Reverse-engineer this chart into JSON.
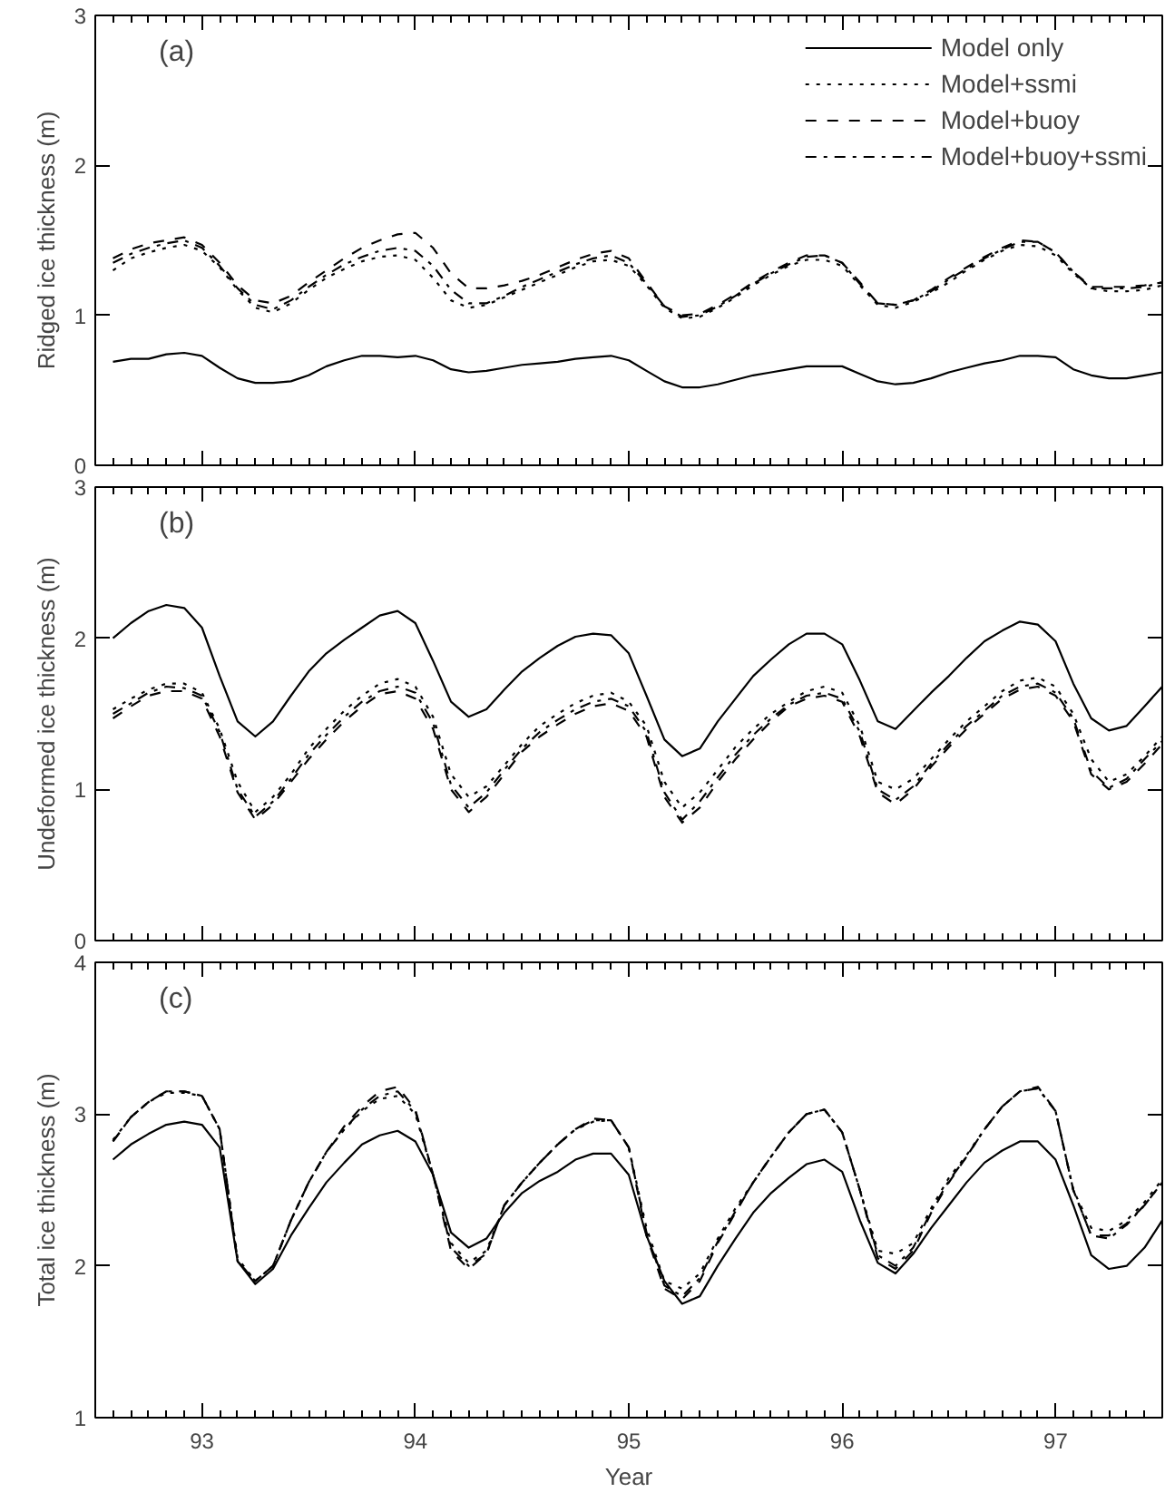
{
  "chart_data": [
    {
      "type": "line",
      "ylabel": "Ridged ice thickness (m)",
      "annotations": [
        "(a)"
      ],
      "legend": "top right",
      "tick_labels": "y",
      "xlim": [
        92.5,
        97.5
      ],
      "xticks": [
        93,
        94,
        95,
        96,
        97
      ],
      "ylim": [
        0,
        3
      ],
      "yticks": [
        0,
        1,
        2,
        3
      ],
      "grid": false,
      "x": [
        92.583,
        92.667,
        92.75,
        92.833,
        92.917,
        93.0,
        93.083,
        93.167,
        93.25,
        93.333,
        93.417,
        93.5,
        93.583,
        93.667,
        93.75,
        93.833,
        93.917,
        94.0,
        94.083,
        94.167,
        94.25,
        94.333,
        94.417,
        94.5,
        94.583,
        94.667,
        94.75,
        94.833,
        94.917,
        95.0,
        95.083,
        95.167,
        95.25,
        95.333,
        95.417,
        95.5,
        95.583,
        95.667,
        95.75,
        95.833,
        95.917,
        96.0,
        96.083,
        96.167,
        96.25,
        96.333,
        96.417,
        96.5,
        96.583,
        96.667,
        96.75,
        96.833,
        96.917,
        97.0,
        97.083,
        97.167,
        97.25,
        97.333,
        97.417,
        97.5
      ],
      "series": [
        {
          "name": "Model only",
          "color": "#000000",
          "line_style": "solid",
          "values": [
            0.69,
            0.71,
            0.71,
            0.74,
            0.75,
            0.73,
            0.65,
            0.58,
            0.55,
            0.55,
            0.56,
            0.6,
            0.66,
            0.7,
            0.73,
            0.73,
            0.72,
            0.73,
            0.7,
            0.64,
            0.62,
            0.63,
            0.65,
            0.67,
            0.68,
            0.69,
            0.71,
            0.72,
            0.73,
            0.7,
            0.63,
            0.56,
            0.52,
            0.52,
            0.54,
            0.57,
            0.6,
            0.62,
            0.64,
            0.66,
            0.66,
            0.66,
            0.61,
            0.56,
            0.54,
            0.55,
            0.58,
            0.62,
            0.65,
            0.68,
            0.7,
            0.73,
            0.73,
            0.72,
            0.64,
            0.6,
            0.58,
            0.58,
            0.6,
            0.62
          ]
        },
        {
          "name": "Model+ssmi",
          "color": "#000000",
          "line_style": "dotted",
          "values": [
            1.3,
            1.38,
            1.42,
            1.45,
            1.47,
            1.43,
            1.32,
            1.17,
            1.05,
            1.02,
            1.08,
            1.17,
            1.25,
            1.31,
            1.36,
            1.39,
            1.4,
            1.37,
            1.25,
            1.1,
            1.05,
            1.07,
            1.12,
            1.17,
            1.22,
            1.27,
            1.32,
            1.36,
            1.37,
            1.33,
            1.2,
            1.05,
            0.98,
            0.99,
            1.05,
            1.12,
            1.2,
            1.27,
            1.33,
            1.37,
            1.37,
            1.33,
            1.2,
            1.07,
            1.05,
            1.09,
            1.15,
            1.22,
            1.3,
            1.37,
            1.43,
            1.47,
            1.46,
            1.4,
            1.28,
            1.18,
            1.16,
            1.16,
            1.17,
            1.2
          ]
        },
        {
          "name": "Model+buoy",
          "color": "#000000",
          "line_style": "dashed",
          "values": [
            1.38,
            1.44,
            1.48,
            1.5,
            1.52,
            1.47,
            1.35,
            1.2,
            1.1,
            1.08,
            1.13,
            1.22,
            1.3,
            1.38,
            1.45,
            1.5,
            1.54,
            1.55,
            1.45,
            1.28,
            1.18,
            1.18,
            1.2,
            1.23,
            1.27,
            1.32,
            1.37,
            1.41,
            1.43,
            1.38,
            1.22,
            1.06,
            1.0,
            1.01,
            1.07,
            1.14,
            1.22,
            1.29,
            1.35,
            1.4,
            1.4,
            1.35,
            1.22,
            1.08,
            1.07,
            1.1,
            1.17,
            1.25,
            1.32,
            1.39,
            1.45,
            1.5,
            1.49,
            1.42,
            1.29,
            1.19,
            1.19,
            1.19,
            1.2,
            1.22
          ]
        },
        {
          "name": "Model+buoy+ssmi",
          "color": "#000000",
          "line_style": "dashdot",
          "values": [
            1.35,
            1.41,
            1.45,
            1.48,
            1.5,
            1.45,
            1.33,
            1.18,
            1.07,
            1.04,
            1.1,
            1.19,
            1.27,
            1.34,
            1.39,
            1.43,
            1.45,
            1.43,
            1.33,
            1.17,
            1.08,
            1.08,
            1.13,
            1.19,
            1.24,
            1.29,
            1.34,
            1.38,
            1.4,
            1.35,
            1.21,
            1.06,
            0.99,
            1.0,
            1.06,
            1.13,
            1.21,
            1.28,
            1.34,
            1.39,
            1.4,
            1.35,
            1.21,
            1.08,
            1.07,
            1.1,
            1.16,
            1.24,
            1.31,
            1.38,
            1.44,
            1.49,
            1.49,
            1.42,
            1.29,
            1.18,
            1.18,
            1.18,
            1.19,
            1.22
          ]
        }
      ]
    },
    {
      "type": "line",
      "ylabel": "Undeformed ice thickness (m)",
      "annotations": [
        "(b)"
      ],
      "tick_labels": "y",
      "xlim": [
        92.5,
        97.5
      ],
      "xticks": [
        93,
        94,
        95,
        96,
        97
      ],
      "ylim": [
        0,
        3
      ],
      "yticks": [
        0,
        1,
        2,
        3
      ],
      "grid": false,
      "x": [
        92.583,
        92.667,
        92.75,
        92.833,
        92.917,
        93.0,
        93.083,
        93.167,
        93.25,
        93.333,
        93.417,
        93.5,
        93.583,
        93.667,
        93.75,
        93.833,
        93.917,
        94.0,
        94.083,
        94.167,
        94.25,
        94.333,
        94.417,
        94.5,
        94.583,
        94.667,
        94.75,
        94.833,
        94.917,
        95.0,
        95.083,
        95.167,
        95.25,
        95.333,
        95.417,
        95.5,
        95.583,
        95.667,
        95.75,
        95.833,
        95.917,
        96.0,
        96.083,
        96.167,
        96.25,
        96.333,
        96.417,
        96.5,
        96.583,
        96.667,
        96.75,
        96.833,
        96.917,
        97.0,
        97.083,
        97.167,
        97.25,
        97.333,
        97.417,
        97.5
      ],
      "series": [
        {
          "color": "#000000",
          "line_style": "solid",
          "values": [
            2.0,
            2.1,
            2.18,
            2.22,
            2.2,
            2.07,
            1.75,
            1.45,
            1.35,
            1.45,
            1.62,
            1.78,
            1.9,
            1.99,
            2.07,
            2.15,
            2.18,
            2.1,
            1.85,
            1.58,
            1.48,
            1.53,
            1.66,
            1.78,
            1.87,
            1.95,
            2.01,
            2.03,
            2.02,
            1.9,
            1.62,
            1.33,
            1.22,
            1.27,
            1.45,
            1.6,
            1.75,
            1.86,
            1.96,
            2.03,
            2.03,
            1.96,
            1.72,
            1.45,
            1.4,
            1.52,
            1.64,
            1.75,
            1.87,
            1.98,
            2.05,
            2.11,
            2.09,
            1.98,
            1.7,
            1.47,
            1.39,
            1.42,
            1.55,
            1.68
          ]
        },
        {
          "color": "#000000",
          "line_style": "dotted",
          "values": [
            1.53,
            1.6,
            1.66,
            1.7,
            1.7,
            1.64,
            1.4,
            1.05,
            0.85,
            0.95,
            1.1,
            1.27,
            1.4,
            1.52,
            1.62,
            1.7,
            1.73,
            1.68,
            1.48,
            1.1,
            0.95,
            1.02,
            1.16,
            1.3,
            1.42,
            1.5,
            1.57,
            1.62,
            1.64,
            1.58,
            1.42,
            1.05,
            0.88,
            0.98,
            1.13,
            1.28,
            1.4,
            1.5,
            1.58,
            1.65,
            1.68,
            1.64,
            1.42,
            1.05,
            1.0,
            1.07,
            1.2,
            1.33,
            1.45,
            1.55,
            1.65,
            1.72,
            1.74,
            1.68,
            1.5,
            1.2,
            1.05,
            1.1,
            1.22,
            1.35
          ]
        },
        {
          "color": "#000000",
          "line_style": "dashed",
          "values": [
            1.47,
            1.55,
            1.62,
            1.65,
            1.65,
            1.6,
            1.35,
            0.98,
            0.8,
            0.9,
            1.05,
            1.2,
            1.33,
            1.45,
            1.55,
            1.63,
            1.65,
            1.6,
            1.4,
            1.0,
            0.85,
            0.95,
            1.1,
            1.25,
            1.35,
            1.43,
            1.5,
            1.55,
            1.57,
            1.52,
            1.35,
            0.95,
            0.78,
            0.88,
            1.05,
            1.2,
            1.33,
            1.45,
            1.55,
            1.6,
            1.62,
            1.58,
            1.35,
            0.98,
            0.9,
            1.0,
            1.15,
            1.28,
            1.4,
            1.5,
            1.6,
            1.66,
            1.68,
            1.62,
            1.45,
            1.1,
            1.0,
            1.05,
            1.17,
            1.3
          ]
        },
        {
          "color": "#000000",
          "line_style": "dashdot",
          "values": [
            1.5,
            1.57,
            1.64,
            1.68,
            1.67,
            1.62,
            1.38,
            1.0,
            0.82,
            0.92,
            1.07,
            1.23,
            1.36,
            1.48,
            1.58,
            1.65,
            1.68,
            1.64,
            1.44,
            1.03,
            0.88,
            0.98,
            1.13,
            1.27,
            1.38,
            1.46,
            1.53,
            1.58,
            1.6,
            1.55,
            1.38,
            0.98,
            0.8,
            0.92,
            1.08,
            1.23,
            1.36,
            1.47,
            1.56,
            1.62,
            1.64,
            1.6,
            1.38,
            1.0,
            0.93,
            1.02,
            1.17,
            1.3,
            1.42,
            1.52,
            1.62,
            1.68,
            1.7,
            1.64,
            1.47,
            1.12,
            1.01,
            1.07,
            1.2,
            1.32
          ]
        }
      ]
    },
    {
      "type": "line",
      "ylabel": "Total ice thickness (m)",
      "xlabel": "Year",
      "annotations": [
        "(c)"
      ],
      "xlim": [
        92.5,
        97.5
      ],
      "xticks": [
        93,
        94,
        95,
        96,
        97
      ],
      "ylim": [
        1,
        4
      ],
      "yticks": [
        1,
        2,
        3,
        4
      ],
      "grid": false,
      "x": [
        92.583,
        92.667,
        92.75,
        92.833,
        92.917,
        93.0,
        93.083,
        93.167,
        93.25,
        93.333,
        93.417,
        93.5,
        93.583,
        93.667,
        93.75,
        93.833,
        93.917,
        94.0,
        94.083,
        94.167,
        94.25,
        94.333,
        94.417,
        94.5,
        94.583,
        94.667,
        94.75,
        94.833,
        94.917,
        95.0,
        95.083,
        95.167,
        95.25,
        95.333,
        95.417,
        95.5,
        95.583,
        95.667,
        95.75,
        95.833,
        95.917,
        96.0,
        96.083,
        96.167,
        96.25,
        96.333,
        96.417,
        96.5,
        96.583,
        96.667,
        96.75,
        96.833,
        96.917,
        97.0,
        97.083,
        97.167,
        97.25,
        97.333,
        97.417,
        97.5
      ],
      "series": [
        {
          "color": "#000000",
          "line_style": "solid",
          "values": [
            2.7,
            2.8,
            2.87,
            2.93,
            2.95,
            2.93,
            2.78,
            2.03,
            1.88,
            1.98,
            2.2,
            2.38,
            2.55,
            2.68,
            2.8,
            2.86,
            2.89,
            2.82,
            2.6,
            2.22,
            2.12,
            2.18,
            2.35,
            2.48,
            2.56,
            2.62,
            2.7,
            2.74,
            2.74,
            2.6,
            2.2,
            1.9,
            1.75,
            1.8,
            2.0,
            2.18,
            2.35,
            2.48,
            2.58,
            2.67,
            2.7,
            2.62,
            2.3,
            2.02,
            1.95,
            2.08,
            2.25,
            2.4,
            2.55,
            2.68,
            2.76,
            2.82,
            2.82,
            2.7,
            2.4,
            2.07,
            1.98,
            2.0,
            2.12,
            2.3
          ]
        },
        {
          "color": "#000000",
          "line_style": "dotted",
          "values": [
            2.83,
            2.98,
            3.08,
            3.14,
            3.14,
            3.12,
            2.9,
            2.05,
            1.9,
            2.0,
            2.3,
            2.55,
            2.75,
            2.9,
            3.02,
            3.1,
            3.12,
            3.0,
            2.6,
            2.15,
            2.02,
            2.1,
            2.4,
            2.55,
            2.68,
            2.8,
            2.9,
            2.95,
            2.96,
            2.78,
            2.25,
            1.9,
            1.85,
            1.95,
            2.18,
            2.38,
            2.55,
            2.72,
            2.88,
            3.0,
            3.03,
            2.88,
            2.5,
            2.1,
            2.08,
            2.15,
            2.38,
            2.58,
            2.73,
            2.9,
            3.05,
            3.15,
            3.17,
            3.02,
            2.5,
            2.25,
            2.23,
            2.3,
            2.42,
            2.57
          ]
        },
        {
          "color": "#000000",
          "line_style": "dashed",
          "values": [
            2.82,
            2.98,
            3.08,
            3.15,
            3.15,
            3.12,
            2.9,
            2.03,
            1.9,
            2.0,
            2.3,
            2.55,
            2.75,
            2.92,
            3.05,
            3.15,
            3.18,
            3.03,
            2.6,
            2.1,
            1.98,
            2.08,
            2.4,
            2.55,
            2.68,
            2.8,
            2.9,
            2.97,
            2.96,
            2.78,
            2.2,
            1.85,
            1.78,
            1.9,
            2.15,
            2.35,
            2.55,
            2.72,
            2.88,
            3.0,
            3.03,
            2.88,
            2.5,
            2.05,
            1.98,
            2.1,
            2.35,
            2.55,
            2.72,
            2.9,
            3.05,
            3.15,
            3.18,
            3.02,
            2.5,
            2.2,
            2.2,
            2.28,
            2.4,
            2.55
          ]
        },
        {
          "color": "#000000",
          "line_style": "dashdot",
          "values": [
            2.82,
            2.98,
            3.08,
            3.15,
            3.15,
            3.12,
            2.9,
            2.03,
            1.9,
            2.0,
            2.3,
            2.55,
            2.75,
            2.9,
            3.03,
            3.12,
            3.15,
            3.02,
            2.6,
            2.12,
            2.0,
            2.08,
            2.4,
            2.55,
            2.68,
            2.8,
            2.9,
            2.96,
            2.96,
            2.78,
            2.22,
            1.87,
            1.8,
            1.92,
            2.16,
            2.36,
            2.55,
            2.72,
            2.88,
            3.0,
            3.03,
            2.88,
            2.5,
            2.07,
            2.0,
            2.12,
            2.36,
            2.56,
            2.72,
            2.9,
            3.05,
            3.15,
            3.17,
            3.02,
            2.5,
            2.2,
            2.18,
            2.27,
            2.4,
            2.55
          ]
        }
      ]
    }
  ]
}
